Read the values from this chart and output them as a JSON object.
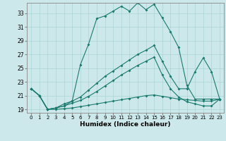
{
  "xlabel": "Humidex (Indice chaleur)",
  "xlim": [
    -0.5,
    23.5
  ],
  "ylim": [
    18.5,
    34.5
  ],
  "xticks": [
    0,
    1,
    2,
    3,
    4,
    5,
    6,
    7,
    8,
    9,
    10,
    11,
    12,
    13,
    14,
    15,
    16,
    17,
    18,
    19,
    20,
    21,
    22,
    23
  ],
  "yticks": [
    19,
    21,
    23,
    25,
    27,
    29,
    31,
    33
  ],
  "bg_color": "#cce8ea",
  "grid_color": "#aad4d6",
  "line_color": "#1a7a6e",
  "line1_x": [
    0,
    1,
    2,
    3,
    4,
    5,
    6,
    7,
    8,
    9,
    10,
    11,
    12,
    13,
    14,
    15,
    16,
    17,
    18,
    19,
    20,
    21,
    22,
    23
  ],
  "line1_y": [
    22.0,
    21.0,
    19.0,
    19.2,
    19.5,
    20.2,
    25.5,
    28.5,
    32.2,
    32.6,
    33.3,
    34.0,
    33.3,
    34.5,
    33.5,
    34.3,
    32.3,
    30.3,
    28.0,
    22.5,
    20.5,
    20.5,
    20.5,
    20.5
  ],
  "line2_x": [
    0,
    1,
    2,
    3,
    4,
    5,
    6,
    7,
    8,
    9,
    10,
    11,
    12,
    13,
    14,
    15,
    16,
    17,
    18,
    19,
    20,
    21,
    22,
    23
  ],
  "line2_y": [
    22.0,
    21.0,
    19.0,
    19.2,
    19.8,
    20.2,
    20.8,
    21.8,
    22.8,
    23.8,
    24.6,
    25.4,
    26.2,
    27.0,
    27.6,
    28.3,
    26.0,
    23.8,
    22.0,
    22.0,
    24.5,
    26.5,
    24.5,
    20.5
  ],
  "line3_x": [
    0,
    1,
    2,
    3,
    4,
    5,
    6,
    7,
    8,
    9,
    10,
    11,
    12,
    13,
    14,
    15,
    16,
    17,
    18,
    19,
    20,
    21,
    22,
    23
  ],
  "line3_y": [
    22.0,
    21.0,
    19.0,
    19.2,
    19.5,
    19.9,
    20.3,
    20.9,
    21.6,
    22.4,
    23.2,
    24.0,
    24.7,
    25.4,
    26.0,
    26.6,
    24.0,
    22.0,
    20.8,
    20.1,
    19.8,
    19.5,
    19.5,
    20.5
  ],
  "line4_x": [
    0,
    1,
    2,
    3,
    4,
    5,
    6,
    7,
    8,
    9,
    10,
    11,
    12,
    13,
    14,
    15,
    16,
    17,
    18,
    19,
    20,
    21,
    22,
    23
  ],
  "line4_y": [
    22.0,
    21.0,
    19.0,
    19.0,
    19.1,
    19.2,
    19.4,
    19.6,
    19.8,
    20.0,
    20.2,
    20.4,
    20.6,
    20.8,
    21.0,
    21.1,
    20.9,
    20.7,
    20.5,
    20.4,
    20.3,
    20.2,
    20.2,
    20.5
  ]
}
